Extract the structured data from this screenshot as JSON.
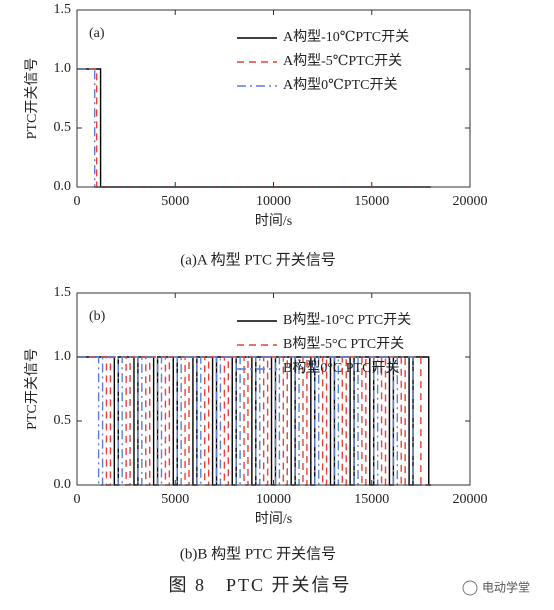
{
  "chart_data": [
    {
      "type": "line",
      "panel_label": "(a)",
      "xlabel": "时间/s",
      "ylabel": "PTC开关信号",
      "caption": "(a)A 构型 PTC 开关信号",
      "xlim": [
        0,
        20000
      ],
      "ylim": [
        0,
        1.5
      ],
      "xticks": [
        0,
        5000,
        10000,
        15000,
        20000
      ],
      "yticks": [
        {
          "value": 0,
          "label": "0.0"
        },
        {
          "value": 0.5,
          "label": "0.5"
        },
        {
          "value": 1,
          "label": "1.0"
        },
        {
          "value": 1.5,
          "label": "1.5"
        }
      ],
      "legend": "upper right",
      "series": [
        {
          "name": "A构型-10℃PTC开关",
          "color": "#000000",
          "linestyle": "solid",
          "x": [
            0,
            1200,
            1200,
            18000
          ],
          "values": [
            1,
            1,
            0,
            0
          ]
        },
        {
          "name": "A构型-5℃PTC开关",
          "color": "#e8413a",
          "linestyle": "dashed",
          "x": [
            0,
            1000,
            1000,
            18000
          ],
          "values": [
            1,
            1,
            0,
            0
          ]
        },
        {
          "name": "A构型0℃PTC开关",
          "color": "#5b7fd6",
          "linestyle": "dashdot",
          "x": [
            0,
            900,
            900,
            18000
          ],
          "values": [
            1,
            1,
            0,
            0
          ]
        }
      ]
    },
    {
      "type": "line",
      "panel_label": "(b)",
      "xlabel": "时间/s",
      "ylabel": "PTC开关信号",
      "caption": "(b)B 构型 PTC 开关信号",
      "xlim": [
        0,
        20000
      ],
      "ylim": [
        0,
        1.5
      ],
      "xticks": [
        0,
        5000,
        10000,
        15000,
        20000
      ],
      "yticks": [
        {
          "value": 0,
          "label": "0.0"
        },
        {
          "value": 0.5,
          "label": "0.5"
        },
        {
          "value": 1,
          "label": "1.0"
        },
        {
          "value": 1.5,
          "label": "1.5"
        }
      ],
      "legend": "upper right",
      "series": [
        {
          "name": "B构型-10°C PTC开关",
          "color": "#000000",
          "linestyle": "solid",
          "x": [
            0,
            1900,
            1900,
            2100,
            2100,
            2900,
            2900,
            3100,
            3100,
            3900,
            3900,
            4100,
            4100,
            4900,
            4900,
            5100,
            5100,
            5900,
            5900,
            6100,
            6100,
            6900,
            6900,
            7100,
            7100,
            7900,
            7900,
            8100,
            8100,
            8900,
            8900,
            9100,
            9100,
            9900,
            9900,
            10100,
            10100,
            10900,
            10900,
            11100,
            11100,
            11900,
            11900,
            12100,
            12100,
            12900,
            12900,
            13100,
            13100,
            13900,
            13900,
            14100,
            14100,
            14900,
            14900,
            15100,
            15100,
            15900,
            15900,
            16100,
            16100,
            16900,
            16900,
            17100,
            17100,
            17900,
            17900,
            18000
          ],
          "values": [
            1,
            1,
            0,
            0,
            1,
            1,
            0,
            0,
            1,
            1,
            0,
            0,
            1,
            1,
            0,
            0,
            1,
            1,
            0,
            0,
            1,
            1,
            0,
            0,
            1,
            1,
            0,
            0,
            1,
            1,
            0,
            0,
            1,
            1,
            0,
            0,
            1,
            1,
            0,
            0,
            1,
            1,
            0,
            0,
            1,
            1,
            0,
            0,
            1,
            1,
            0,
            0,
            1,
            1,
            0,
            0,
            1,
            1,
            0,
            0,
            1,
            1,
            0,
            0,
            1,
            1,
            0,
            0
          ]
        },
        {
          "name": "B构型-5°C PTC开关",
          "color": "#e8413a",
          "linestyle": "dashed",
          "x": [
            0,
            1500,
            1500,
            1700,
            1700,
            2500,
            2500,
            2700,
            2700,
            3500,
            3500,
            3700,
            3700,
            4500,
            4500,
            4700,
            4700,
            5500,
            5500,
            5700,
            5700,
            6500,
            6500,
            6700,
            6700,
            7500,
            7500,
            7700,
            7700,
            8500,
            8500,
            8700,
            8700,
            9500,
            9500,
            9700,
            9700,
            10500,
            10500,
            10700,
            10700,
            11500,
            11500,
            11700,
            11700,
            12500,
            12500,
            12700,
            12700,
            13500,
            13500,
            13700,
            13700,
            14500,
            14500,
            14700,
            14700,
            15500,
            15500,
            15700,
            15700,
            16500,
            16500,
            16700,
            16700,
            17500,
            17500,
            18000
          ],
          "values": [
            1,
            1,
            0,
            0,
            1,
            1,
            0,
            0,
            1,
            1,
            0,
            0,
            1,
            1,
            0,
            0,
            1,
            1,
            0,
            0,
            1,
            1,
            0,
            0,
            1,
            1,
            0,
            0,
            1,
            1,
            0,
            0,
            1,
            1,
            0,
            0,
            1,
            1,
            0,
            0,
            1,
            1,
            0,
            0,
            1,
            1,
            0,
            0,
            1,
            1,
            0,
            0,
            1,
            1,
            0,
            0,
            1,
            1,
            0,
            0,
            1,
            1,
            0,
            0,
            1,
            1,
            0,
            0
          ]
        },
        {
          "name": "B构型0°C PTC开关",
          "color": "#5b7fd6",
          "linestyle": "dashdot",
          "x": [
            0,
            1100,
            1100,
            1300,
            1300,
            2100,
            2100,
            2300,
            2300,
            3100,
            3100,
            3300,
            3300,
            4100,
            4100,
            4300,
            4300,
            5100,
            5100,
            5300,
            5300,
            6100,
            6100,
            6300,
            6300,
            7100,
            7100,
            7300,
            7300,
            8100,
            8100,
            8300,
            8300,
            9100,
            9100,
            9300,
            9300,
            10100,
            10100,
            10300,
            10300,
            11100,
            11100,
            11300,
            11300,
            12100,
            12100,
            12300,
            12300,
            13100,
            13100,
            13300,
            13300,
            14100,
            14100,
            14300,
            14300,
            15100,
            15100,
            15300,
            15300,
            16100,
            16100,
            16300,
            16300,
            17100,
            17100,
            18000
          ],
          "values": [
            1,
            1,
            0,
            0,
            1,
            1,
            0,
            0,
            1,
            1,
            0,
            0,
            1,
            1,
            0,
            0,
            1,
            1,
            0,
            0,
            1,
            1,
            0,
            0,
            1,
            1,
            0,
            0,
            1,
            1,
            0,
            0,
            1,
            1,
            0,
            0,
            1,
            1,
            0,
            0,
            1,
            1,
            0,
            0,
            1,
            1,
            0,
            0,
            1,
            1,
            0,
            0,
            1,
            1,
            0,
            0,
            1,
            1,
            0,
            0,
            1,
            1,
            0,
            0,
            1,
            1,
            0,
            0
          ]
        }
      ]
    }
  ],
  "figure_caption": "图 8　PTC 开关信号",
  "watermark": "电动学堂"
}
